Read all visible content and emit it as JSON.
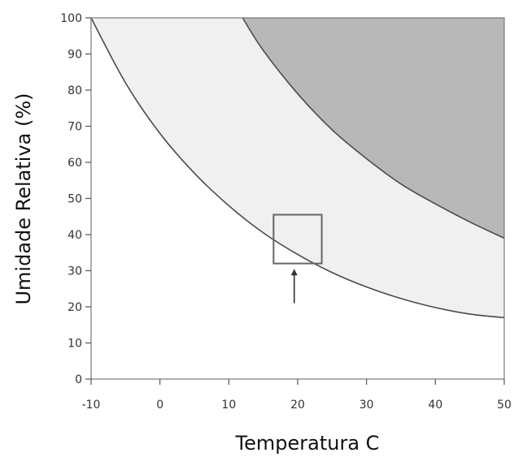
{
  "chart_data": {
    "type": "area",
    "xlabel": "Temperatura  C",
    "ylabel": "Umidade Relativa (%)",
    "xlim": [
      -10,
      50
    ],
    "ylim": [
      0,
      100
    ],
    "x_ticks": [
      -10,
      0,
      10,
      20,
      30,
      40,
      50
    ],
    "y_ticks": [
      0,
      10,
      20,
      30,
      40,
      50,
      60,
      70,
      80,
      90,
      100
    ],
    "grid": false,
    "series": [
      {
        "x": [
          -10,
          -5,
          0,
          5,
          10,
          15,
          20,
          25,
          30,
          35,
          40,
          45,
          50
        ],
        "y": [
          100,
          82,
          68,
          57,
          48,
          40.5,
          34.5,
          29.5,
          25.5,
          22.3,
          19.8,
          18,
          17
        ]
      },
      {
        "x": [
          12,
          15,
          20,
          25,
          30,
          35,
          40,
          45,
          50
        ],
        "y": [
          100,
          91,
          79,
          69,
          61,
          54,
          48.5,
          43.5,
          39
        ]
      }
    ],
    "region_colors": [
      "#ffffff",
      "#f0f0f0",
      "#b8b8b8"
    ],
    "line_color": "#4a4a4a",
    "highlight_box": {
      "x_range": [
        16.5,
        23.5
      ],
      "y_range": [
        32,
        45.5
      ]
    },
    "arrow": {
      "x": 19.5,
      "y_from": 21,
      "y_to": 30.5
    }
  }
}
